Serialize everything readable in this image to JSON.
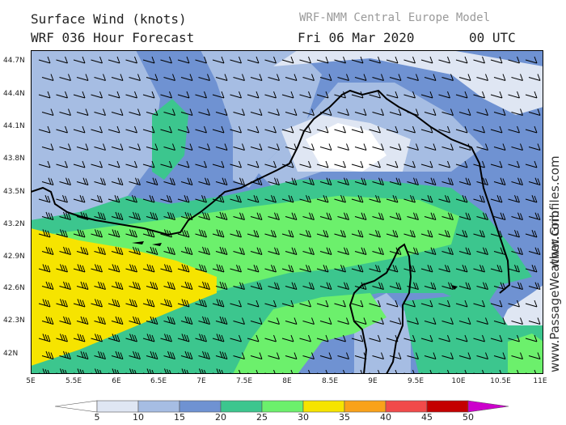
{
  "header": {
    "title": "Surface Wind (knots)",
    "subtitle": "WRF 036 Hour Forecast",
    "model": "WRF-NMM Central Europe Model",
    "date": "Fri 06 Mar 2020",
    "time": "00 UTC"
  },
  "axes": {
    "lat_labels": [
      "44.7N",
      "44.4N",
      "44.1N",
      "43.8N",
      "43.5N",
      "43.2N",
      "42.9N",
      "42.6N",
      "42.3N",
      "42N"
    ],
    "lon_labels": [
      "5E",
      "5.5E",
      "6E",
      "6.5E",
      "7E",
      "7.5E",
      "8E",
      "8.5E",
      "9E",
      "9.5E",
      "10E",
      "10.5E",
      "11E"
    ]
  },
  "colorbar": {
    "labels": [
      "5",
      "10",
      "15",
      "20",
      "25",
      "30",
      "35",
      "40",
      "45",
      "50"
    ],
    "colors": [
      "#ffffff",
      "#dfe6f3",
      "#a6bde3",
      "#6f92d2",
      "#3cc68e",
      "#6cf06c",
      "#f6e400",
      "#f9a21a",
      "#f14a4a",
      "#c40000",
      "#cc00cc"
    ]
  },
  "branding": {
    "site1": "www.Gribfiles.com",
    "site2": "www.PassageWeather.com"
  }
}
